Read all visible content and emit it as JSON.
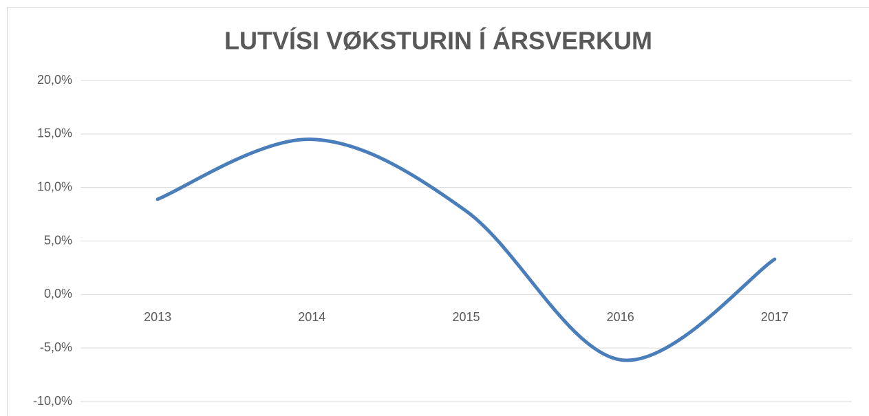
{
  "chart_data": {
    "type": "line",
    "title": "LUTVÍSI VØKSTURIN Í ÁRSVERKUM",
    "categories": [
      "2013",
      "2014",
      "2015",
      "2016",
      "2017"
    ],
    "series": [
      {
        "name": "Lutvísi vøksturin",
        "color": "#4a7ebb",
        "values": [
          8.9,
          14.5,
          7.8,
          -6.1,
          3.3
        ]
      }
    ],
    "ylim": [
      -10,
      20
    ],
    "yticks": [
      {
        "value": -10,
        "label": "-10,0%"
      },
      {
        "value": -5,
        "label": "-5,0%"
      },
      {
        "value": 0,
        "label": "0,0%"
      },
      {
        "value": 5,
        "label": "5,0%"
      },
      {
        "value": 10,
        "label": "10,0%"
      },
      {
        "value": 15,
        "label": "15,0%"
      },
      {
        "value": 20,
        "label": "20,0%"
      }
    ],
    "grid": true,
    "smooth": true
  }
}
